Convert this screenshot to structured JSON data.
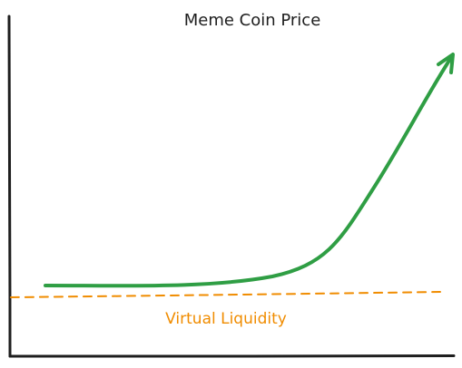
{
  "diagram": {
    "title": "Meme Coin Price",
    "liquidity_label": "Virtual Liquidity",
    "colors": {
      "background": "#ffffff",
      "axis": "#1e1e1e",
      "title": "#1e1e1e",
      "price_curve": "#2f9e44",
      "liquidity_line": "#f08c00",
      "liquidity_text": "#f08c00"
    }
  }
}
